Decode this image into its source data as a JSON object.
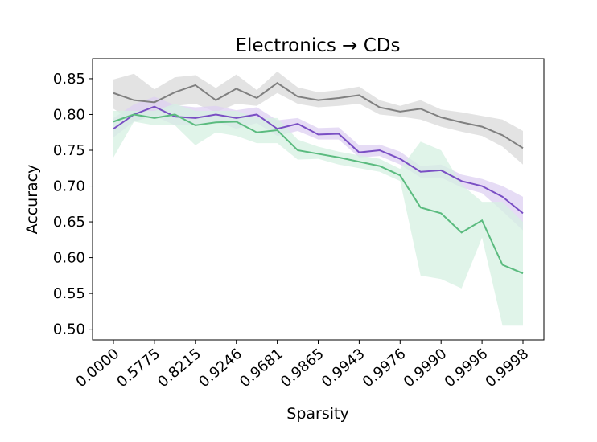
{
  "chart_data": {
    "type": "line",
    "title": "Electronics → CDs",
    "xlabel": "Sparsity",
    "ylabel": "Accuracy",
    "x_tick_labels": [
      "0.0000",
      "0.5775",
      "0.8215",
      "0.9246",
      "0.9681",
      "0.9865",
      "0.9943",
      "0.9976",
      "0.9990",
      "0.9996",
      "0.9998"
    ],
    "y_ticks": [
      "0.50",
      "0.55",
      "0.60",
      "0.65",
      "0.70",
      "0.75",
      "0.80",
      "0.85"
    ],
    "ylim": [
      0.485,
      0.878
    ],
    "grid": false,
    "legend": "none",
    "series": [
      {
        "color": "#808080",
        "band_color": "#d9d9d9",
        "values": [
          0.83,
          0.82,
          0.817,
          0.831,
          0.841,
          0.82,
          0.836,
          0.823,
          0.844,
          0.825,
          0.82,
          0.823,
          0.827,
          0.81,
          0.804,
          0.808,
          0.796,
          0.789,
          0.783,
          0.771,
          0.753
        ],
        "lower": [
          0.808,
          0.79,
          0.8,
          0.812,
          0.815,
          0.803,
          0.815,
          0.812,
          0.83,
          0.815,
          0.81,
          0.812,
          0.815,
          0.8,
          0.797,
          0.793,
          0.783,
          0.776,
          0.77,
          0.755,
          0.73
        ],
        "upper": [
          0.849,
          0.857,
          0.835,
          0.852,
          0.855,
          0.837,
          0.856,
          0.834,
          0.86,
          0.838,
          0.831,
          0.834,
          0.839,
          0.82,
          0.812,
          0.82,
          0.807,
          0.803,
          0.798,
          0.793,
          0.777
        ]
      },
      {
        "color": "#7a4fc4",
        "band_color": "#ddd0f2",
        "values": [
          0.78,
          0.8,
          0.811,
          0.797,
          0.795,
          0.8,
          0.795,
          0.8,
          0.78,
          0.787,
          0.772,
          0.773,
          0.747,
          0.75,
          0.738,
          0.72,
          0.722,
          0.707,
          0.7,
          0.685,
          0.662
        ],
        "lower": [
          0.768,
          0.79,
          0.798,
          0.785,
          0.785,
          0.79,
          0.78,
          0.788,
          0.77,
          0.777,
          0.765,
          0.765,
          0.74,
          0.742,
          0.73,
          0.712,
          0.712,
          0.698,
          0.69,
          0.665,
          0.638
        ],
        "upper": [
          0.795,
          0.814,
          0.825,
          0.813,
          0.81,
          0.812,
          0.806,
          0.81,
          0.792,
          0.795,
          0.781,
          0.782,
          0.757,
          0.758,
          0.748,
          0.728,
          0.73,
          0.716,
          0.71,
          0.7,
          0.685
        ]
      },
      {
        "color": "#5bbb7f",
        "band_color": "#d6f0e1",
        "values": [
          0.79,
          0.8,
          0.795,
          0.8,
          0.785,
          0.789,
          0.79,
          0.775,
          0.778,
          0.75,
          0.745,
          0.74,
          0.734,
          0.728,
          0.715,
          0.67,
          0.662,
          0.635,
          0.652,
          0.59,
          0.578
        ],
        "lower": [
          0.74,
          0.79,
          0.785,
          0.785,
          0.757,
          0.775,
          0.77,
          0.76,
          0.76,
          0.737,
          0.738,
          0.73,
          0.725,
          0.72,
          0.707,
          0.575,
          0.57,
          0.557,
          0.628,
          0.505,
          0.505
        ],
        "upper": [
          0.805,
          0.805,
          0.805,
          0.815,
          0.805,
          0.805,
          0.805,
          0.795,
          0.795,
          0.765,
          0.755,
          0.748,
          0.743,
          0.738,
          0.724,
          0.762,
          0.75,
          0.702,
          0.678,
          0.678,
          0.65
        ]
      }
    ]
  }
}
